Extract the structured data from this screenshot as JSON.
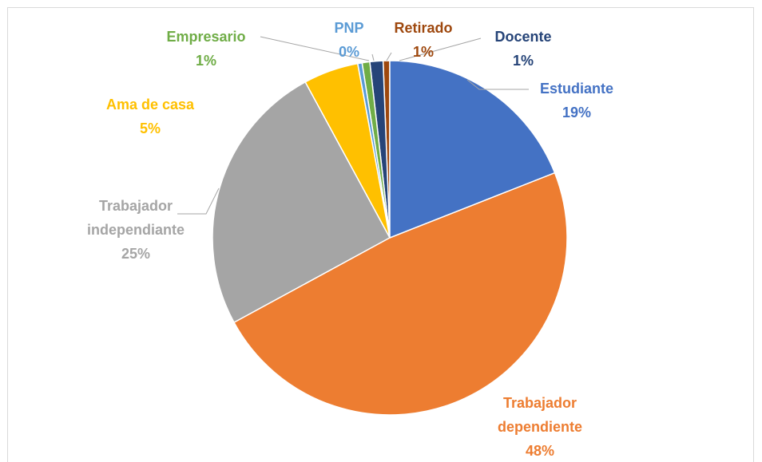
{
  "chart_data": {
    "type": "pie",
    "categories": [
      "Estudiante",
      "Trabajador dependiente",
      "Trabajador independiante",
      "Ama de casa",
      "PNP",
      "Empresario",
      "Docente",
      "Retirado"
    ],
    "values": [
      19,
      48,
      25,
      5,
      0.4,
      0.7,
      1.2,
      0.6
    ],
    "value_labels": [
      "19%",
      "48%",
      "25%",
      "5%",
      "0%",
      "1%",
      "1%",
      "1%"
    ],
    "colors": [
      "#4472c4",
      "#ed7d31",
      "#a5a5a5",
      "#ffc000",
      "#5b9bd5",
      "#70ad47",
      "#264478",
      "#9e480e"
    ]
  }
}
